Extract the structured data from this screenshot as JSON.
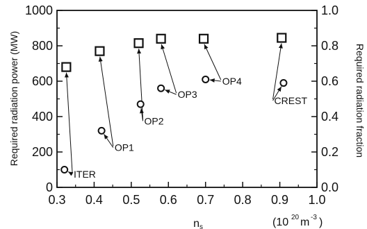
{
  "chart_data": {
    "type": "scatter",
    "title": "",
    "xlabel": "n",
    "xlabel_subscript": "s",
    "xunit": {
      "open": "(10",
      "exp1": "20",
      "mid": "m",
      "exp2": "-3",
      "close": ")"
    },
    "ylabel": "Required radiation power (MW)",
    "y2label": "Required radiation fraction",
    "xlim": [
      0.3,
      1.0
    ],
    "ylim": [
      0,
      1000
    ],
    "y2lim": [
      0.0,
      1.0
    ],
    "x_ticks": [
      "0.3",
      "0.4",
      "0.5",
      "0.6",
      "0.7",
      "0.8",
      "0.9",
      "1.0"
    ],
    "y_ticks": [
      "0",
      "200",
      "400",
      "600",
      "800",
      "1000"
    ],
    "y2_ticks": [
      "0.0",
      "0.2",
      "0.4",
      "0.6",
      "0.8",
      "1.0"
    ],
    "grid": false,
    "series": [
      {
        "marker": "circle",
        "axis": "left",
        "x": [
          0.32,
          0.42,
          0.525,
          0.58,
          0.7,
          0.91
        ],
        "y": [
          100,
          320,
          470,
          560,
          610,
          590
        ]
      },
      {
        "marker": "square",
        "axis": "right",
        "x": [
          0.325,
          0.415,
          0.52,
          0.58,
          0.695,
          0.905
        ],
        "y": [
          0.68,
          0.77,
          0.815,
          0.84,
          0.84,
          0.845
        ]
      }
    ],
    "annotations": [
      {
        "text": "ITER",
        "x": 0.345,
        "y": 75,
        "circle": 0,
        "square": 0
      },
      {
        "text": "OP1",
        "x": 0.455,
        "y": 225,
        "circle": 1,
        "square": 1
      },
      {
        "text": "OP2",
        "x": 0.535,
        "y": 375,
        "circle": 2,
        "square": 2
      },
      {
        "text": "OP3",
        "x": 0.625,
        "y": 525,
        "circle": 3,
        "square": 3
      },
      {
        "text": "OP4",
        "x": 0.745,
        "y": 600,
        "circle": 4,
        "square": 4
      },
      {
        "text": "CREST",
        "x": 0.885,
        "y": 490,
        "circle": 5,
        "square": 5
      }
    ]
  }
}
